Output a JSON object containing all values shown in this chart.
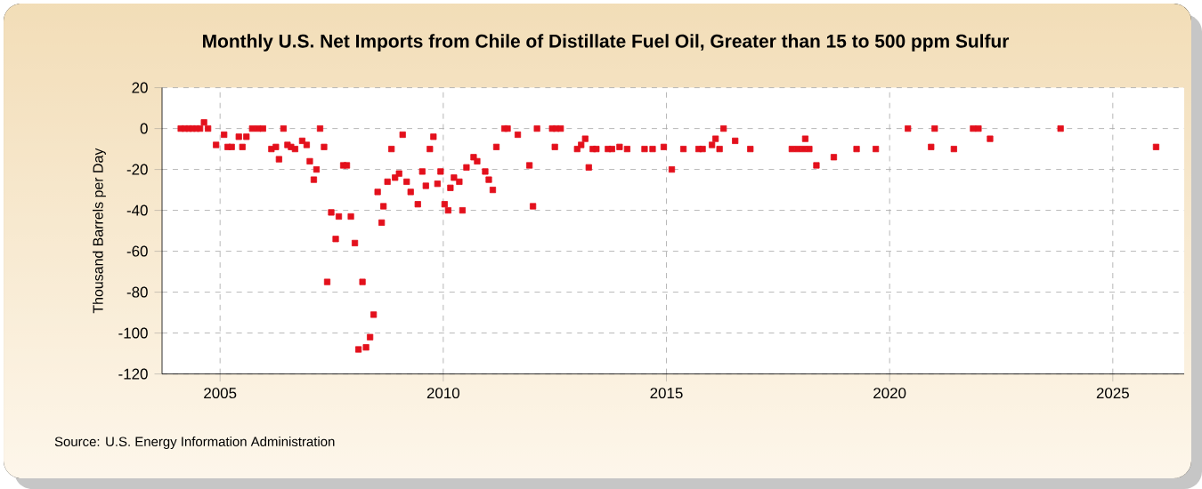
{
  "chart_data": {
    "type": "scatter",
    "title": "Monthly U.S. Net Imports from Chile of Distillate Fuel Oil, Greater than 15 to 500 ppm Sulfur",
    "ylabel": "Thousand Barrels per Day",
    "annotations": [
      "Source: U.S. Energy Information Administration"
    ],
    "x": [
      2004.12,
      2004.21,
      2004.3,
      2004.38,
      2004.47,
      2004.55,
      2004.64,
      2004.73,
      2004.91,
      2005.09,
      2005.17,
      2005.26,
      2005.42,
      2005.5,
      2005.59,
      2005.72,
      2005.85,
      2005.96,
      2006.15,
      2006.25,
      2006.32,
      2006.42,
      2006.51,
      2006.59,
      2006.68,
      2006.84,
      2006.94,
      2007.01,
      2007.1,
      2007.16,
      2007.24,
      2007.33,
      2007.4,
      2007.49,
      2007.59,
      2007.66,
      2007.76,
      2007.84,
      2007.93,
      2008.02,
      2008.1,
      2008.19,
      2008.27,
      2008.36,
      2008.44,
      2008.53,
      2008.62,
      2008.66,
      2008.75,
      2008.84,
      2008.92,
      2009.01,
      2009.09,
      2009.18,
      2009.27,
      2009.43,
      2009.53,
      2009.61,
      2009.7,
      2009.78,
      2009.87,
      2009.94,
      2010.03,
      2010.11,
      2010.16,
      2010.24,
      2010.36,
      2010.43,
      2010.52,
      2010.68,
      2010.76,
      2010.94,
      2011.02,
      2011.11,
      2011.19,
      2011.37,
      2011.44,
      2011.67,
      2011.93,
      2012.01,
      2012.1,
      2012.44,
      2012.5,
      2012.53,
      2012.63,
      2013.0,
      2013.09,
      2013.18,
      2013.26,
      2013.35,
      2013.43,
      2013.69,
      2013.78,
      2013.95,
      2014.12,
      2014.51,
      2014.69,
      2014.94,
      2015.12,
      2015.38,
      2015.72,
      2015.81,
      2016.02,
      2016.1,
      2016.19,
      2016.28,
      2016.54,
      2016.88,
      2017.81,
      2017.94,
      2018.07,
      2018.11,
      2018.2,
      2018.36,
      2018.75,
      2019.26,
      2019.69,
      2020.41,
      2020.93,
      2021.01,
      2021.44,
      2021.87,
      2021.99,
      2022.25,
      2023.83,
      2025.97
    ],
    "values": [
      0,
      0,
      0,
      0,
      0,
      0,
      3,
      0,
      -8,
      -3,
      -9,
      -9,
      -4,
      -9,
      -4,
      0,
      0,
      0,
      -10,
      -9,
      -15,
      0,
      -8,
      -9,
      -10,
      -6,
      -8,
      -16,
      -25,
      -20,
      0,
      -9,
      -75,
      -41,
      -54,
      -43,
      -18,
      -18,
      -43,
      -56,
      -108,
      -75,
      -107,
      -102,
      -91,
      -31,
      -46,
      -38,
      -26,
      -10,
      -24,
      -22,
      -3,
      -26,
      -31,
      -37,
      -21,
      -28,
      -10,
      -4,
      -27,
      -21,
      -37,
      -40,
      -29,
      -24,
      -26,
      -40,
      -19,
      -14,
      -16,
      -21,
      -25,
      -30,
      -9,
      0,
      0,
      -3,
      -18,
      -38,
      0,
      0,
      -9,
      0,
      0,
      -10,
      -8,
      -5,
      -19,
      -10,
      -10,
      -10,
      -10,
      -9,
      -10,
      -10,
      -10,
      -9,
      -20,
      -10,
      -10,
      -10,
      -8,
      -5,
      -10,
      0,
      -6,
      -10,
      -10,
      -10,
      -10,
      -5,
      -10,
      -18,
      -14,
      -10,
      -10,
      0,
      -9,
      0,
      -10,
      0,
      0,
      -5,
      0,
      -9
    ],
    "color": "#e3101c",
    "marker": "square",
    "grid": true,
    "xlim": [
      2003.7,
      2026.6
    ],
    "xticks": [
      2005,
      2010,
      2015,
      2020,
      2025
    ],
    "ylim": [
      -120,
      20
    ],
    "yticks": [
      -120,
      -100,
      -80,
      -60,
      -40,
      -20,
      0,
      20
    ]
  }
}
